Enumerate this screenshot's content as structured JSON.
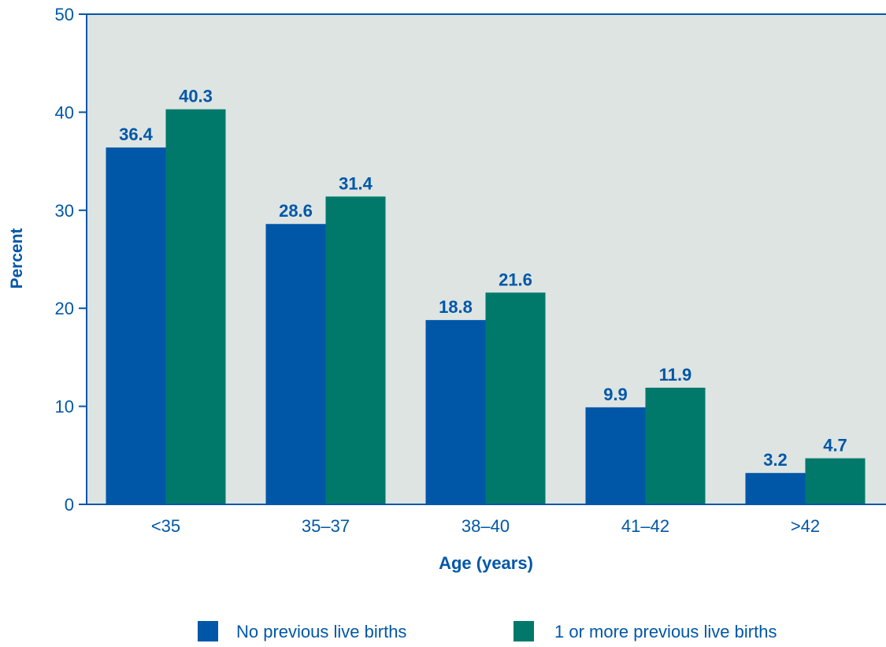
{
  "chart_data": {
    "type": "bar",
    "title": "",
    "xlabel": "Age (years)",
    "ylabel": "Percent",
    "ylim": [
      0,
      50
    ],
    "yticks": [
      0,
      10,
      20,
      30,
      40,
      50
    ],
    "grid": false,
    "legend_position": "bottom",
    "categories": [
      "<35",
      "35–37",
      "38–40",
      "41–42",
      ">42"
    ],
    "series": [
      {
        "name": "No previous live births",
        "color": "#0057A8",
        "values": [
          36.4,
          28.6,
          18.8,
          9.9,
          3.2
        ],
        "labels": [
          "36.4",
          "28.6",
          "18.8",
          "9.9",
          "3.2"
        ]
      },
      {
        "name": "1 or more previous live births",
        "color": "#00796B",
        "values": [
          40.3,
          31.4,
          21.6,
          11.9,
          4.7
        ],
        "labels": [
          "40.3",
          "31.4",
          "21.6",
          "11.9",
          "4.7"
        ]
      }
    ],
    "colors": {
      "plot_background": "#DDE4E2",
      "axis": "#0057A8",
      "label_text": "#0057A8",
      "tick_text": "#0057A8"
    }
  }
}
